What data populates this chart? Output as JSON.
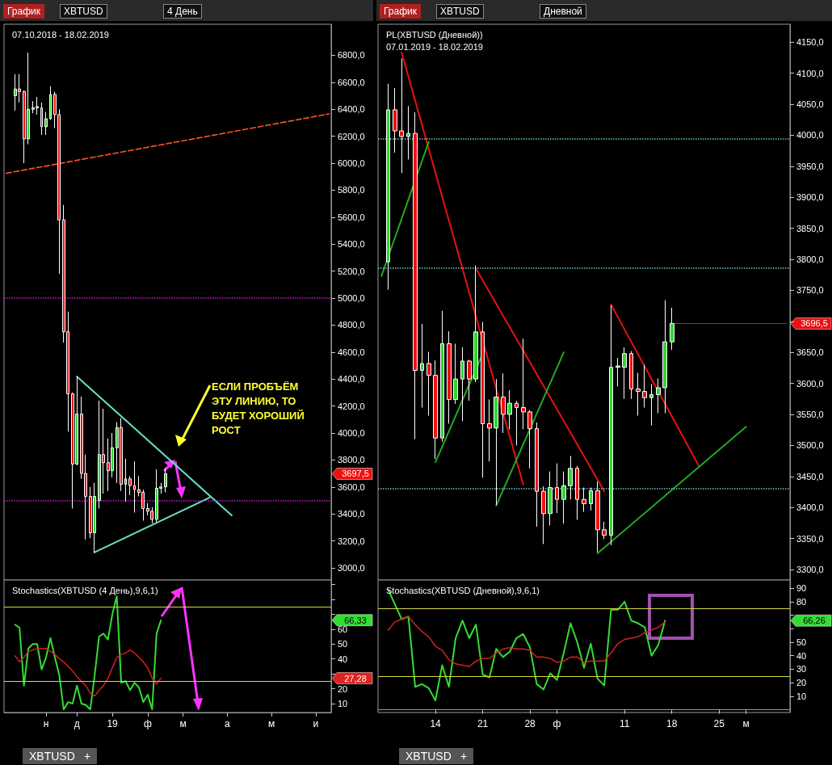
{
  "chart_data": [
    {
      "type": "candlestick",
      "title": "07.10.2018 - 18.02.2019",
      "categories": [
        null,
        null,
        null,
        null,
        null,
        null,
        null,
        null,
        null,
        null,
        null,
        null,
        null,
        null,
        null,
        null,
        null,
        null,
        null,
        null,
        null,
        null,
        null,
        null,
        null,
        null,
        null,
        null,
        null,
        null,
        null,
        null,
        null,
        null,
        null,
        null,
        null,
        null,
        null,
        null,
        null,
        null,
        null,
        null,
        null,
        null,
        null,
        null,
        null,
        null,
        null,
        null,
        null,
        null,
        null,
        null,
        null,
        null,
        null,
        null,
        null,
        null,
        null,
        null,
        null,
        null,
        null,
        null,
        null,
        null,
        null,
        null,
        null,
        null
      ],
      "ohlc": [
        null,
        null,
        [
          6500,
          6660,
          6390,
          6550
        ],
        [
          6550,
          6660,
          6450,
          6530
        ],
        [
          6530,
          6540,
          6000,
          6180
        ],
        [
          6180,
          6820,
          6140,
          6400
        ],
        [
          6400,
          6460,
          6370,
          6410
        ],
        [
          6410,
          6490,
          6360,
          6420
        ],
        [
          6410,
          6450,
          6210,
          6270
        ],
        [
          6270,
          6380,
          6210,
          6330
        ],
        [
          6330,
          6570,
          6320,
          6510
        ],
        [
          6510,
          6530,
          6260,
          6360
        ],
        [
          6360,
          6400,
          5180,
          5580
        ],
        [
          5580,
          5690,
          4670,
          4750
        ],
        [
          4750,
          4900,
          4010,
          4290
        ],
        [
          4290,
          4300,
          3440,
          3770
        ],
        [
          3770,
          4420,
          3760,
          4140
        ],
        [
          4140,
          4270,
          3660,
          3700
        ],
        [
          3700,
          3840,
          3210,
          3530
        ],
        [
          3530,
          3600,
          3220,
          3260
        ],
        [
          3260,
          3630,
          3110,
          3530
        ],
        [
          3500,
          4240,
          3440,
          3840
        ],
        [
          3840,
          4180,
          3550,
          3780
        ],
        [
          3780,
          3960,
          3570,
          3720
        ],
        [
          3720,
          4000,
          3670,
          3890
        ],
        [
          3890,
          4080,
          3630,
          4040
        ],
        [
          4040,
          4110,
          3570,
          3620
        ],
        [
          3620,
          3810,
          3490,
          3660
        ],
        [
          3660,
          3680,
          3540,
          3610
        ],
        [
          3610,
          3790,
          3410,
          3580
        ],
        [
          3580,
          3680,
          3530,
          3560
        ],
        [
          3560,
          3580,
          3350,
          3440
        ],
        [
          3440,
          3480,
          3390,
          3420
        ],
        [
          3420,
          3450,
          3330,
          3360
        ],
        [
          3360,
          3730,
          3340,
          3590
        ],
        [
          3590,
          3630,
          3550,
          3600
        ],
        [
          3600,
          3740,
          3560,
          3697.5
        ],
        null,
        null,
        null,
        null,
        null,
        null,
        null,
        null,
        null,
        null,
        null,
        null,
        null,
        null,
        null,
        null,
        null,
        null,
        null,
        null,
        null,
        null,
        null,
        null,
        null,
        null,
        null,
        null,
        null,
        null,
        null,
        null,
        null,
        null,
        null,
        null,
        null
      ],
      "series": [
        {
          "type": "line",
          "color": "#ff5522",
          "line_style": "dashed",
          "values": [
            5925,
            null,
            null,
            null,
            null,
            null,
            null,
            null,
            null,
            null,
            null,
            null,
            null,
            null,
            null,
            null,
            null,
            null,
            null,
            null,
            null,
            null,
            null,
            null,
            null,
            null,
            null,
            null,
            null,
            null,
            null,
            null,
            null,
            null,
            null,
            null,
            null,
            null,
            null,
            null,
            null,
            null,
            null,
            null,
            null,
            null,
            null,
            null,
            null,
            null,
            null,
            null,
            null,
            null,
            null,
            null,
            null,
            null,
            null,
            null,
            null,
            null,
            null,
            null,
            null,
            null,
            null,
            null,
            null,
            null,
            null,
            null,
            null,
            6365
          ]
        },
        {
          "type": "line",
          "color": "#66e0c8",
          "values": [
            null,
            null,
            null,
            null,
            null,
            null,
            null,
            null,
            null,
            null,
            null,
            null,
            null,
            null,
            null,
            null,
            4418,
            null,
            null,
            null,
            null,
            null,
            null,
            null,
            null,
            null,
            null,
            null,
            null,
            null,
            null,
            null,
            null,
            null,
            null,
            null,
            null,
            null,
            null,
            null,
            null,
            null,
            null,
            null,
            null,
            null,
            null,
            null,
            null,
            null,
            null,
            3389,
            null,
            null,
            null,
            null,
            null,
            null,
            null,
            null,
            null,
            null,
            null,
            null,
            null,
            null,
            null,
            null,
            null,
            null,
            null,
            null,
            null,
            null
          ]
        },
        {
          "type": "line",
          "color": "#66e0c8",
          "values": [
            null,
            null,
            null,
            null,
            null,
            null,
            null,
            null,
            null,
            null,
            null,
            null,
            null,
            null,
            null,
            null,
            null,
            null,
            null,
            null,
            3116,
            null,
            null,
            null,
            null,
            null,
            null,
            null,
            null,
            null,
            null,
            null,
            null,
            null,
            null,
            null,
            null,
            null,
            null,
            null,
            null,
            null,
            null,
            null,
            null,
            null,
            3521,
            null,
            null,
            null,
            null,
            null,
            null,
            null,
            null,
            null,
            null,
            null,
            null,
            null,
            null,
            null,
            null,
            null,
            null,
            null,
            null,
            null,
            null,
            null,
            null,
            null,
            null,
            null
          ]
        }
      ],
      "ylim": [
        2910,
        7030
      ],
      "yticks": [
        {
          "value": 3000,
          "label": "3000,0"
        },
        {
          "value": 3200,
          "label": "3200,0"
        },
        {
          "value": 3400,
          "label": "3400,0"
        },
        {
          "value": 3600,
          "label": "3600,0"
        },
        {
          "value": 3800,
          "label": "3800,0"
        },
        {
          "value": 4000,
          "label": "4000,0"
        },
        {
          "value": 4200,
          "label": "4200,0"
        },
        {
          "value": 4400,
          "label": "4400,0"
        },
        {
          "value": 4600,
          "label": "4600,0"
        },
        {
          "value": 4800,
          "label": "4800,0"
        },
        {
          "value": 5000,
          "label": "5000,0"
        },
        {
          "value": 5200,
          "label": "5200,0"
        },
        {
          "value": 5400,
          "label": "5400,0"
        },
        {
          "value": 5600,
          "label": "5600,0"
        },
        {
          "value": 5800,
          "label": "5800,0"
        },
        {
          "value": 6000,
          "label": "6000,0"
        },
        {
          "value": 6200,
          "label": "6200,0"
        },
        {
          "value": 6400,
          "label": "6400,0"
        },
        {
          "value": 6600,
          "label": "6600,0"
        },
        {
          "value": 6800,
          "label": "6800,0"
        }
      ],
      "tick_labels": "y",
      "ref_lines": [
        {
          "axis": "y",
          "value": 5000,
          "color": "#cc22cc",
          "line_style": "dotted"
        },
        {
          "axis": "y",
          "value": 3500,
          "color": "#cc22cc",
          "line_style": "dotted"
        }
      ],
      "annotations": [
        "График",
        "XBTUSD",
        "4 День",
        "ЕСЛИ ПРОБЪЁМ ЭТУ ЛИНИЮ, ТО БУДЕТ ХОРОШИЙ РОСТ",
        "3697,5"
      ]
    },
    {
      "type": "candlestick",
      "title": "PL(XBTUSD (Дневной))",
      "subtitle": "07.01.2019 - 18.02.2019",
      "categories": [
        null,
        null,
        null,
        null,
        null,
        null,
        null,
        null,
        null,
        null,
        null,
        null,
        null,
        null,
        null,
        null,
        null,
        null,
        null,
        null,
        null,
        null,
        null,
        null,
        null,
        null,
        null,
        null,
        null,
        null,
        null,
        null,
        null,
        null,
        null,
        null,
        null,
        null,
        null,
        null,
        null,
        null,
        null,
        null,
        null,
        null,
        null,
        null,
        null,
        null,
        null,
        null,
        null,
        null,
        null,
        null,
        null,
        null,
        null,
        null,
        null
      ],
      "ohlc": [
        null,
        [
          3796,
          4083,
          3751,
          4041
        ],
        [
          4041,
          4076,
          3972,
          4007
        ],
        [
          4007,
          4124,
          3939,
          3998
        ],
        [
          3998,
          4047,
          3961,
          4003
        ],
        [
          4003,
          4037,
          3510,
          3621
        ],
        [
          3621,
          3696,
          3561,
          3632
        ],
        [
          3632,
          3651,
          3548,
          3613
        ],
        [
          3613,
          3637,
          3478,
          3512
        ],
        [
          3512,
          3717,
          3506,
          3664
        ],
        [
          3664,
          3684,
          3535,
          3574
        ],
        [
          3574,
          3664,
          3567,
          3607
        ],
        [
          3607,
          3658,
          3539,
          3636
        ],
        [
          3636,
          3638,
          3572,
          3607
        ],
        [
          3607,
          3790,
          3602,
          3683
        ],
        [
          3683,
          3699,
          3448,
          3535
        ],
        [
          3535,
          3574,
          3474,
          3528
        ],
        [
          3528,
          3607,
          3404,
          3578
        ],
        [
          3578,
          3616,
          3520,
          3550
        ],
        [
          3550,
          3589,
          3526,
          3568
        ],
        [
          3568,
          3572,
          3500,
          3561
        ],
        [
          3561,
          3672,
          3526,
          3554
        ],
        [
          3554,
          3557,
          3463,
          3527
        ],
        [
          3527,
          3537,
          3369,
          3426
        ],
        [
          3426,
          3434,
          3341,
          3390
        ],
        [
          3390,
          3458,
          3371,
          3432
        ],
        [
          3432,
          3471,
          3391,
          3413
        ],
        [
          3413,
          3458,
          3374,
          3435
        ],
        [
          3435,
          3483,
          3413,
          3463
        ],
        [
          3463,
          3467,
          3380,
          3413
        ],
        [
          3413,
          3432,
          3393,
          3406
        ],
        [
          3406,
          3432,
          3395,
          3427
        ],
        [
          3427,
          3442,
          3328,
          3364
        ],
        [
          3364,
          3377,
          3349,
          3355
        ],
        [
          3355,
          3726,
          3339,
          3626
        ],
        [
          3626,
          3641,
          3595,
          3628
        ],
        [
          3626,
          3658,
          3575,
          3648
        ],
        [
          3648,
          3652,
          3575,
          3591
        ],
        [
          3591,
          3617,
          3548,
          3587
        ],
        [
          3587,
          3630,
          3561,
          3577
        ],
        [
          3577,
          3599,
          3532,
          3582
        ],
        [
          3582,
          3608,
          3552,
          3593
        ],
        [
          3593,
          3734,
          3552,
          3667
        ],
        [
          3667,
          3722,
          3654,
          3696.5
        ],
        null,
        null,
        null,
        null,
        null,
        null,
        null,
        null,
        null,
        null,
        null,
        null,
        null,
        null,
        null,
        null,
        null
      ],
      "series": [
        {
          "type": "line",
          "color": "#e81010",
          "values": [
            null,
            null,
            null,
            4133,
            null,
            null,
            null,
            null,
            null,
            null,
            null,
            null,
            null,
            null,
            null,
            null,
            null,
            null,
            null,
            null,
            null,
            3437,
            null,
            null,
            null,
            null,
            null,
            null,
            null,
            null,
            null,
            null,
            null,
            null,
            null,
            null,
            null,
            null,
            null,
            null,
            null,
            null,
            null,
            null,
            null,
            null,
            null,
            null,
            null,
            null,
            null,
            null,
            null,
            null,
            null,
            null,
            null,
            null,
            null,
            null,
            null
          ]
        },
        {
          "type": "line",
          "color": "#e81010",
          "values": [
            null,
            null,
            null,
            null,
            null,
            null,
            null,
            null,
            null,
            null,
            null,
            null,
            null,
            null,
            3785,
            null,
            null,
            null,
            null,
            null,
            null,
            null,
            null,
            null,
            null,
            null,
            null,
            null,
            null,
            null,
            null,
            null,
            null,
            3426,
            null,
            null,
            null,
            null,
            null,
            null,
            null,
            null,
            null,
            null,
            null,
            null,
            null,
            null,
            null,
            null,
            null,
            null,
            null,
            null,
            null,
            null,
            null,
            null,
            null,
            null,
            null
          ]
        },
        {
          "type": "line",
          "color": "#e81010",
          "values": [
            null,
            null,
            null,
            null,
            null,
            null,
            null,
            null,
            null,
            null,
            null,
            null,
            null,
            null,
            null,
            null,
            null,
            null,
            null,
            null,
            null,
            null,
            null,
            null,
            null,
            null,
            null,
            null,
            null,
            null,
            null,
            null,
            null,
            null,
            3727,
            null,
            null,
            null,
            null,
            null,
            null,
            null,
            null,
            null,
            null,
            null,
            null,
            3467,
            null,
            null,
            null,
            null,
            null,
            null,
            null,
            null,
            null,
            null,
            null,
            null,
            null
          ]
        },
        {
          "type": "line",
          "color": "#22aa22",
          "values": [
            3773,
            null,
            null,
            null,
            null,
            null,
            null,
            3989,
            null,
            null,
            null,
            null,
            null,
            null,
            null,
            null,
            null,
            null,
            null,
            null,
            null,
            null,
            null,
            null,
            null,
            null,
            null,
            null,
            null,
            null,
            null,
            null,
            null,
            null,
            null,
            null,
            null,
            null,
            null,
            null,
            null,
            null,
            null,
            null,
            null,
            null,
            null,
            null,
            null,
            null,
            null,
            null,
            null,
            null,
            null,
            null,
            null,
            null,
            null,
            null,
            null
          ]
        },
        {
          "type": "line",
          "color": "#22aa22",
          "values": [
            null,
            null,
            null,
            null,
            null,
            null,
            null,
            null,
            3473,
            null,
            null,
            null,
            null,
            null,
            null,
            3648,
            null,
            null,
            null,
            null,
            null,
            null,
            null,
            null,
            null,
            null,
            null,
            null,
            null,
            null,
            null,
            null,
            null,
            null,
            null,
            null,
            null,
            null,
            null,
            null,
            null,
            null,
            null,
            null,
            null,
            null,
            null,
            null,
            null,
            null,
            null,
            null,
            null,
            null,
            null,
            null,
            null,
            null,
            null,
            null,
            null
          ]
        },
        {
          "type": "line",
          "color": "#22aa22",
          "values": [
            null,
            null,
            null,
            null,
            null,
            null,
            null,
            null,
            null,
            null,
            null,
            null,
            null,
            null,
            null,
            null,
            null,
            3403,
            null,
            null,
            null,
            null,
            null,
            null,
            null,
            null,
            null,
            3650,
            null,
            null,
            null,
            null,
            null,
            null,
            null,
            null,
            null,
            null,
            null,
            null,
            null,
            null,
            null,
            null,
            null,
            null,
            null,
            null,
            null,
            null,
            null,
            null,
            null,
            null,
            null,
            null,
            null,
            null,
            null,
            null,
            null
          ]
        },
        {
          "type": "line",
          "color": "#22aa22",
          "values": [
            null,
            null,
            null,
            null,
            null,
            null,
            null,
            null,
            null,
            null,
            null,
            null,
            null,
            null,
            null,
            null,
            null,
            null,
            null,
            null,
            null,
            null,
            null,
            null,
            null,
            null,
            null,
            null,
            null,
            null,
            null,
            null,
            3326,
            null,
            null,
            null,
            null,
            null,
            null,
            null,
            null,
            null,
            null,
            null,
            null,
            null,
            null,
            null,
            null,
            null,
            null,
            null,
            null,
            null,
            3530,
            null,
            null,
            null,
            null,
            null,
            null
          ]
        }
      ],
      "ylim": [
        3283,
        4179
      ],
      "yticks": [
        {
          "value": 3300,
          "label": "3300,0"
        },
        {
          "value": 3350,
          "label": "3350,0"
        },
        {
          "value": 3400,
          "label": "3400,0"
        },
        {
          "value": 3450,
          "label": "3450,0"
        },
        {
          "value": 3500,
          "label": "3500,0"
        },
        {
          "value": 3550,
          "label": "3550,0"
        },
        {
          "value": 3600,
          "label": "3600,0"
        },
        {
          "value": 3650,
          "label": "3650,0"
        },
        {
          "value": 3700,
          "label": null
        },
        {
          "value": 3750,
          "label": "3750,0"
        },
        {
          "value": 3800,
          "label": "3800,0"
        },
        {
          "value": 3850,
          "label": "3850,0"
        },
        {
          "value": 3900,
          "label": "3900,0"
        },
        {
          "value": 3950,
          "label": "3950,0"
        },
        {
          "value": 4000,
          "label": "4000,0"
        },
        {
          "value": 4050,
          "label": "4050,0"
        },
        {
          "value": 4100,
          "label": "4100,0"
        },
        {
          "value": 4150,
          "label": "4150,0"
        }
      ],
      "tick_labels": "y",
      "ref_lines": [
        {
          "axis": "y",
          "value": 3995,
          "color": "#66cccc",
          "line_style": "dotted"
        },
        {
          "axis": "y",
          "value": 3786,
          "color": "#66cccc",
          "line_style": "dotted"
        },
        {
          "axis": "y",
          "value": 3430,
          "color": "#66cccc",
          "line_style": "dotted"
        },
        {
          "axis": "y",
          "value": 3696.5,
          "label": "3696,5",
          "color": "#e81010"
        }
      ],
      "annotations": [
        "График",
        "XBTUSD",
        "Дневной"
      ]
    },
    {
      "type": "line",
      "title": "Stochastics(XBTUSD (4 День),9,6,1)",
      "categories": [
        null,
        null,
        null,
        null,
        null,
        null,
        null,
        null,
        null,
        "н",
        null,
        null,
        null,
        null,
        null,
        null,
        "д",
        null,
        null,
        null,
        null,
        null,
        null,
        null,
        "19",
        null,
        null,
        null,
        null,
        null,
        null,
        null,
        "ф",
        null,
        null,
        null,
        null,
        null,
        null,
        null,
        "м",
        null,
        null,
        null,
        null,
        null,
        null,
        null,
        null,
        null,
        "а",
        null,
        null,
        null,
        null,
        null,
        null,
        null,
        null,
        null,
        "м",
        null,
        null,
        null,
        null,
        null,
        null,
        null,
        null,
        null,
        "и",
        null,
        null,
        null
      ],
      "series": [
        {
          "color": "#33dd33",
          "values": [
            null,
            null,
            63,
            61,
            22,
            47,
            50,
            50,
            33,
            41,
            54,
            41,
            29,
            6,
            11,
            10,
            22,
            10,
            9,
            6,
            29,
            55,
            57,
            53,
            70,
            82,
            24,
            25,
            19,
            24,
            21,
            11,
            16,
            6,
            57,
            66,
            null,
            null,
            null,
            null,
            null,
            null,
            null,
            null,
            null,
            null,
            null,
            null,
            null,
            null,
            null,
            null,
            null,
            null,
            null,
            null,
            null,
            null,
            null,
            null,
            null,
            null,
            null,
            null,
            null,
            null,
            null,
            null,
            null,
            null,
            null,
            null,
            null,
            null
          ]
        },
        {
          "color": "#dd2222",
          "line_style": "dotted",
          "values": [
            null,
            null,
            42,
            38,
            41,
            45,
            46,
            47,
            47,
            47,
            45,
            43,
            40,
            38,
            35,
            32,
            28,
            25,
            22,
            17,
            15,
            19,
            22,
            27,
            34,
            41,
            43,
            44,
            46,
            44,
            41,
            38,
            34,
            27,
            23,
            27,
            null,
            null,
            null,
            null,
            null,
            null,
            null,
            null,
            null,
            null,
            null,
            null,
            null,
            null,
            null,
            null,
            null,
            null,
            null,
            null,
            null,
            null,
            null,
            null,
            null,
            null,
            null,
            null,
            null,
            null,
            null,
            null,
            null,
            null,
            null,
            null,
            null,
            null
          ]
        }
      ],
      "ylim": [
        4,
        93
      ],
      "yticks": [
        10,
        20,
        {
          "value": 30,
          "label": null
        },
        40,
        50,
        60,
        {
          "value": 70,
          "label": null
        },
        {
          "value": 80,
          "label": null
        },
        {
          "value": 90,
          "label": null
        }
      ],
      "ref_lines": [
        {
          "axis": "y",
          "value": 75,
          "color": "#d8d840"
        },
        {
          "axis": "y",
          "value": 25,
          "color": "#d8d840"
        }
      ],
      "annotations": [
        "XBTUSD",
        "+",
        "66,33",
        "27,28"
      ]
    },
    {
      "type": "line",
      "title": "Stochastics(XBTUSD (Дневной),9,6,1)",
      "categories": [
        null,
        null,
        null,
        null,
        null,
        null,
        null,
        null,
        "14",
        null,
        null,
        null,
        null,
        null,
        null,
        "21",
        null,
        null,
        null,
        null,
        null,
        null,
        "28",
        null,
        null,
        null,
        "ф",
        null,
        null,
        null,
        null,
        null,
        null,
        null,
        null,
        null,
        "11",
        null,
        null,
        null,
        null,
        null,
        null,
        "18",
        null,
        null,
        null,
        null,
        null,
        null,
        "25",
        null,
        null,
        null,
        "м",
        null,
        null,
        null,
        null,
        null,
        null
      ],
      "series": [
        {
          "color": "#33dd33",
          "values": [
            null,
            89,
            78,
            67,
            69,
            17,
            19,
            16,
            7,
            33,
            17,
            53,
            66,
            53,
            63,
            26,
            24,
            45,
            39,
            43,
            53,
            56,
            46,
            19,
            15,
            27,
            22,
            42,
            64,
            50,
            31,
            49,
            23,
            18,
            74,
            74,
            80,
            66,
            64,
            61,
            40,
            48,
            66,
            null,
            null,
            null,
            null,
            null,
            null,
            null,
            null,
            null,
            null,
            null,
            null,
            null,
            null,
            null,
            null,
            null,
            null
          ]
        },
        {
          "color": "#dd2222",
          "line_style": "dotted",
          "values": [
            null,
            59,
            65,
            67,
            69,
            63,
            58,
            54,
            47,
            44,
            37,
            34,
            33,
            32,
            36,
            38,
            38,
            42,
            45,
            46,
            45,
            45,
            44,
            39,
            39,
            38,
            35,
            36,
            39,
            39,
            35,
            36,
            36,
            36,
            42,
            49,
            52,
            53,
            54,
            57,
            59,
            61,
            65,
            null,
            null,
            null,
            null,
            null,
            null,
            null,
            null,
            null,
            null,
            null,
            null,
            null,
            null,
            null,
            null,
            null,
            null
          ]
        }
      ],
      "ylim": [
        -2,
        96
      ],
      "yticks": [
        10,
        20,
        30,
        40,
        50,
        {
          "value": 60,
          "label": null
        },
        {
          "value": 70,
          "label": null
        },
        80,
        90
      ],
      "ref_lines": [
        {
          "axis": "y",
          "value": 75,
          "color": "#d8d840"
        },
        {
          "axis": "y",
          "value": 25,
          "color": "#d8d840"
        }
      ],
      "annotations": [
        "XBTUSD",
        "+",
        "66,26"
      ]
    }
  ]
}
